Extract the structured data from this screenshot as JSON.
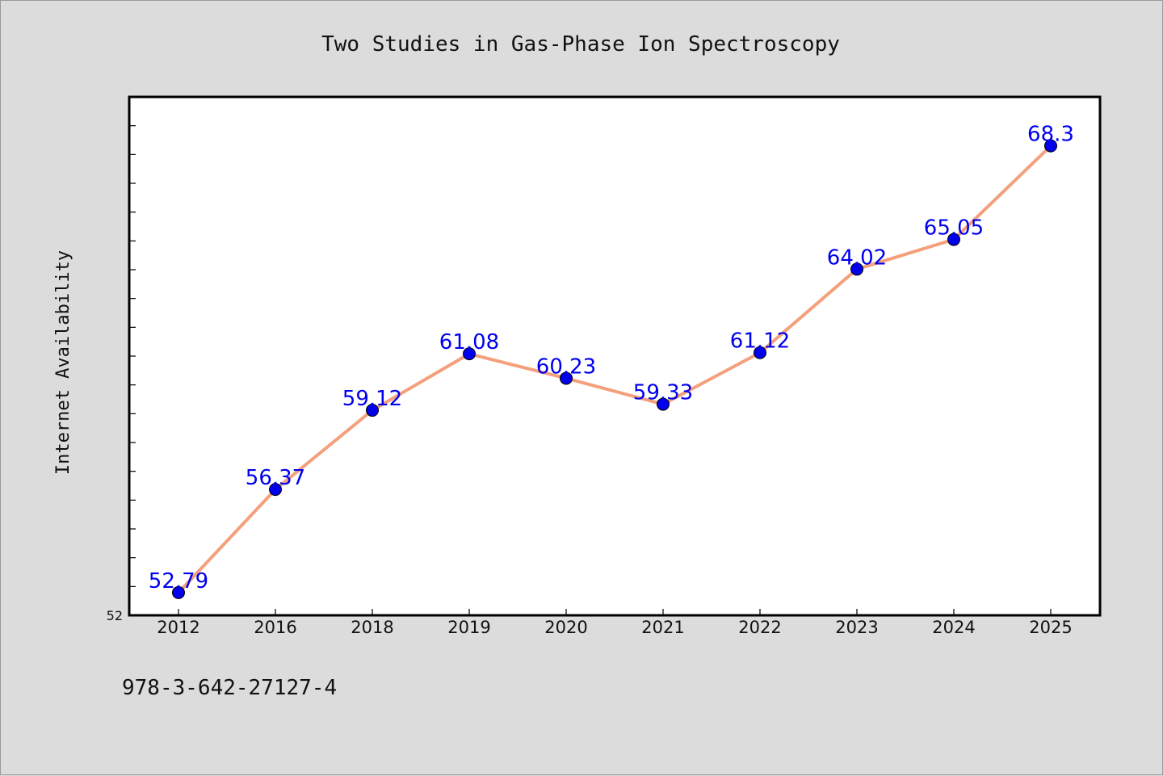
{
  "chart_data": {
    "type": "line",
    "title": "Two Studies in Gas-Phase Ion Spectroscopy",
    "xlabel": "",
    "ylabel": "Internet Availability",
    "categories": [
      "2012",
      "2016",
      "2018",
      "2019",
      "2020",
      "2021",
      "2022",
      "2023",
      "2024",
      "2025"
    ],
    "values": [
      52.79,
      56.37,
      59.12,
      61.08,
      60.23,
      59.33,
      61.12,
      64.02,
      65.05,
      68.3
    ],
    "data_labels": [
      "52.79",
      "56.37",
      "59.12",
      "61.08",
      "60.23",
      "59.33",
      "61.12",
      "64.02",
      "65.05",
      "68.3"
    ],
    "ylim": [
      52,
      70
    ],
    "y_tick_labels": [
      "52"
    ],
    "grid": false,
    "line_color": "#f4a07c",
    "marker_color": "#0000ee",
    "label_color": "#0000ee"
  },
  "footer": {
    "text": "978-3-642-27127-4"
  }
}
